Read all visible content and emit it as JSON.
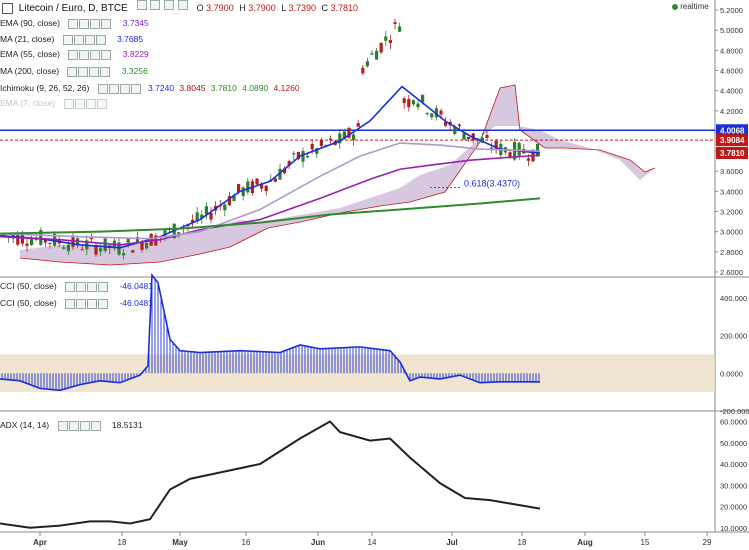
{
  "header": {
    "symbol": "Litecoin / Euro, D, BTCE",
    "ohlc": [
      {
        "label": "O",
        "value": "3.7900"
      },
      {
        "label": "H",
        "value": "3.7900"
      },
      {
        "label": "L",
        "value": "3.7390"
      },
      {
        "label": "C",
        "value": "3.7810"
      }
    ],
    "realtime_label": "realtime"
  },
  "legend": [
    {
      "name": "EMA (90, close)",
      "value": "3.7345",
      "color": "#7a2bc2"
    },
    {
      "name": "MA (21, close)",
      "value": "3.7685",
      "color": "#1a2fd6"
    },
    {
      "name": "EMA (55, close)",
      "value": "3.8229",
      "color": "#9a1fb5"
    },
    {
      "name": "MA (200, close)",
      "value": "3.3256",
      "color": "#2e8b2e"
    },
    {
      "name": "EMA (7, close)",
      "value": "",
      "color": "#b0b0b0"
    }
  ],
  "ichimoku": {
    "name": "Ichimoku (9, 26, 52, 26)",
    "values": [
      "3.7240",
      "3.8045",
      "3.7810",
      "4.0890",
      "4.1260"
    ],
    "colors": [
      "#1a2fd6",
      "#9a1010",
      "#2e8b2e",
      "#2e8b2e",
      "#c01818"
    ]
  },
  "chart_data": [
    {
      "type": "candlestick",
      "title": "Litecoin / Euro, D, BTCE",
      "ylim": [
        2.55,
        5.3
      ],
      "yticks": [
        "2.6000",
        "2.8000",
        "3.0000",
        "3.2000",
        "3.4000",
        "3.6000",
        "3.8000",
        "4.0000",
        "4.2000",
        "4.4000",
        "4.6000",
        "4.8000",
        "5.0000",
        "5.2000"
      ],
      "x_tick_labels": [
        "Apr",
        "18",
        "May",
        "16",
        "Jun",
        "14",
        "Jul",
        "18",
        "Aug",
        "15",
        "29"
      ],
      "price_labels": [
        {
          "value": 4.0068,
          "text": "4.0068",
          "color": "#1a2fd6"
        },
        {
          "value": 3.9084,
          "text": "3.9084",
          "color": "#c01818"
        },
        {
          "value": 3.781,
          "text": "3.7810",
          "color": "#c01818"
        }
      ],
      "fib_annotation": {
        "text": "0.618(3.4370)",
        "value": 3.437
      },
      "series": [
        {
          "name": "MA (21, close)",
          "color": "#1a2fd6",
          "points": [
            [
              0,
              2.96
            ],
            [
              40,
              2.93
            ],
            [
              80,
              2.87
            ],
            [
              120,
              2.84
            ],
            [
              160,
              2.95
            ],
            [
              200,
              3.12
            ],
            [
              240,
              3.4
            ],
            [
              270,
              3.5
            ],
            [
              300,
              3.75
            ],
            [
              340,
              3.9
            ],
            [
              370,
              4.1
            ],
            [
              402,
              4.44
            ],
            [
              420,
              4.3
            ],
            [
              445,
              4.1
            ],
            [
              470,
              3.95
            ],
            [
              500,
              3.82
            ],
            [
              540,
              3.78
            ]
          ]
        },
        {
          "name": "EMA (55, close)",
          "color": "#9a1fb5",
          "points": [
            [
              0,
              2.95
            ],
            [
              60,
              2.92
            ],
            [
              120,
              2.87
            ],
            [
              160,
              2.92
            ],
            [
              200,
              3.02
            ],
            [
              260,
              3.12
            ],
            [
              320,
              3.33
            ],
            [
              370,
              3.52
            ],
            [
              400,
              3.62
            ],
            [
              430,
              3.66
            ],
            [
              470,
              3.71
            ],
            [
              540,
              3.76
            ]
          ]
        },
        {
          "name": "EMA (90, close)",
          "color": "#b199cc",
          "points": [
            [
              0,
              2.98
            ],
            [
              80,
              2.95
            ],
            [
              150,
              2.93
            ],
            [
              200,
              3.0
            ],
            [
              260,
              3.22
            ],
            [
              320,
              3.55
            ],
            [
              360,
              3.75
            ],
            [
              400,
              3.88
            ],
            [
              440,
              3.86
            ],
            [
              480,
              3.82
            ],
            [
              540,
              3.8
            ]
          ]
        },
        {
          "name": "MA (200, close)",
          "color": "#2e8b2e",
          "points": [
            [
              0,
              2.98
            ],
            [
              100,
              3.0
            ],
            [
              180,
              3.03
            ],
            [
              260,
              3.09
            ],
            [
              330,
              3.17
            ],
            [
              400,
              3.22
            ],
            [
              440,
              3.25
            ],
            [
              480,
              3.28
            ],
            [
              540,
              3.33
            ]
          ]
        }
      ],
      "horizontal_lines": [
        {
          "value": 4.0068,
          "color": "#1a2fd6"
        },
        {
          "value": 3.9084,
          "color": "#c01818"
        }
      ]
    },
    {
      "type": "line",
      "title": "CCI (50, close)",
      "ylim": [
        -200,
        500
      ],
      "yticks": [
        "400.000",
        "200.000",
        "0.0000",
        "-200.000"
      ],
      "legend": [
        {
          "name": "CCI (50, close)",
          "value": "-46.0481"
        },
        {
          "name": "CCI (50, close)",
          "value": "-46.0481"
        }
      ],
      "band": [
        -100,
        100
      ],
      "points": [
        [
          0,
          -30
        ],
        [
          20,
          -40
        ],
        [
          40,
          -80
        ],
        [
          60,
          -90
        ],
        [
          80,
          -60
        ],
        [
          100,
          -40
        ],
        [
          120,
          -50
        ],
        [
          140,
          -10
        ],
        [
          148,
          40
        ],
        [
          152,
          520
        ],
        [
          158,
          480
        ],
        [
          170,
          180
        ],
        [
          180,
          120
        ],
        [
          200,
          110
        ],
        [
          240,
          120
        ],
        [
          280,
          110
        ],
        [
          300,
          150
        ],
        [
          320,
          130
        ],
        [
          360,
          140
        ],
        [
          390,
          120
        ],
        [
          400,
          60
        ],
        [
          410,
          -40
        ],
        [
          420,
          -20
        ],
        [
          440,
          -30
        ],
        [
          460,
          -10
        ],
        [
          480,
          -50
        ],
        [
          500,
          -45
        ],
        [
          520,
          -45
        ],
        [
          540,
          -46
        ]
      ]
    },
    {
      "type": "line",
      "title": "ADX (14, 14)",
      "value": "18.5131",
      "ylim": [
        8,
        64
      ],
      "yticks": [
        "60.0000",
        "50.0000",
        "40.0000",
        "30.0000",
        "20.0000",
        "10.0000"
      ],
      "points": [
        [
          0,
          12
        ],
        [
          30,
          10
        ],
        [
          60,
          11
        ],
        [
          90,
          13
        ],
        [
          110,
          13
        ],
        [
          130,
          12
        ],
        [
          150,
          14
        ],
        [
          170,
          28
        ],
        [
          190,
          33
        ],
        [
          220,
          36
        ],
        [
          260,
          40
        ],
        [
          300,
          52
        ],
        [
          330,
          60
        ],
        [
          340,
          55
        ],
        [
          370,
          51
        ],
        [
          390,
          52
        ],
        [
          410,
          43
        ],
        [
          440,
          31
        ],
        [
          465,
          24
        ],
        [
          490,
          23
        ],
        [
          515,
          21
        ],
        [
          540,
          19
        ]
      ]
    }
  ]
}
